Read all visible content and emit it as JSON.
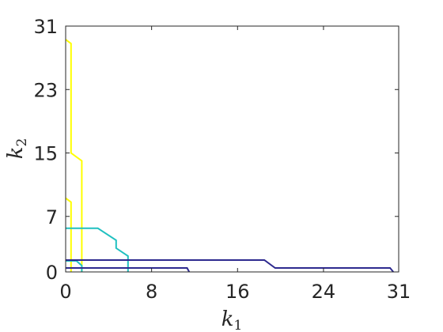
{
  "chart_data": {
    "type": "line",
    "xlabel": "k",
    "xlabel_sub": "1",
    "ylabel": "k",
    "ylabel_sub": "2",
    "xlim": [
      0,
      31
    ],
    "ylim": [
      0,
      31
    ],
    "xticks": [
      0,
      8,
      16,
      24,
      31
    ],
    "yticks": [
      0,
      7,
      15,
      23,
      31
    ],
    "grid": false,
    "legend": "none",
    "series": [
      {
        "color": "#ffff00",
        "points": [
          [
            0,
            29.3
          ],
          [
            0.5,
            28.8
          ],
          [
            0.5,
            15
          ],
          [
            1.5,
            14
          ],
          [
            1.5,
            0
          ]
        ]
      },
      {
        "color": "#ffff00",
        "points": [
          [
            0,
            9.3
          ],
          [
            0.5,
            8.8
          ],
          [
            0.5,
            0
          ]
        ]
      },
      {
        "color": "#20c0c0",
        "points": [
          [
            0,
            5.5
          ],
          [
            3,
            5.5
          ],
          [
            4.7,
            4
          ],
          [
            4.7,
            3
          ],
          [
            5.8,
            2
          ],
          [
            5.8,
            0
          ]
        ]
      },
      {
        "color": "#20c0c0",
        "points": [
          [
            0,
            1.4
          ],
          [
            1,
            1.4
          ],
          [
            1.5,
            0.8
          ],
          [
            1.5,
            0
          ]
        ]
      },
      {
        "color": "#2e2a8f",
        "points": [
          [
            0,
            1.5
          ],
          [
            18.5,
            1.5
          ],
          [
            19.5,
            0.5
          ],
          [
            30.2,
            0.5
          ],
          [
            30.5,
            0
          ]
        ]
      },
      {
        "color": "#2e2a8f",
        "points": [
          [
            0,
            0.5
          ],
          [
            11.3,
            0.5
          ],
          [
            11.5,
            0
          ]
        ]
      }
    ]
  }
}
